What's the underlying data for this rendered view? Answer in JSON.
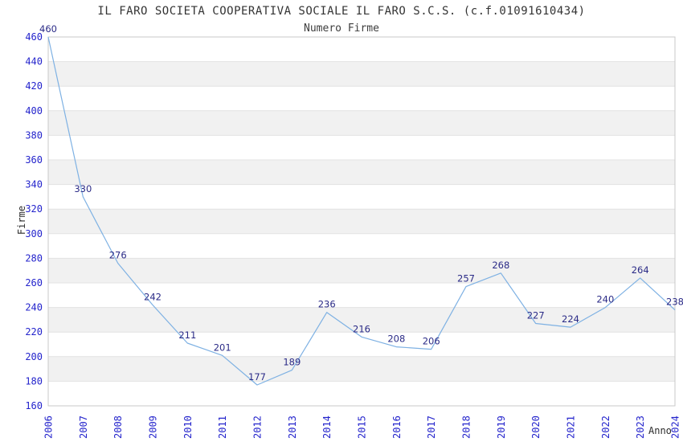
{
  "title": "IL FARO SOCIETA COOPERATIVA SOCIALE IL FARO S.C.S. (c.f.01091610434)",
  "subtitle": "Numero Firme",
  "colors": {
    "background": "#ffffff",
    "title_text": "#333333",
    "accent_line": "#7eb1e3",
    "axis_tick_label": "#2424cc",
    "point_label": "#2b2b87",
    "plot_band": "#f1f1f1",
    "grid_line": "#e2e2e2",
    "plot_border": "#c9c9c9"
  },
  "chart_data": {
    "type": "line",
    "title": "IL FARO SOCIETA COOPERATIVA SOCIALE IL FARO S.C.S. (c.f.01091610434)",
    "subtitle": "Numero Firme",
    "xlabel": "Anno",
    "ylabel": "Firme",
    "x": [
      "2006",
      "2007",
      "2008",
      "2009",
      "2010",
      "2011",
      "2012",
      "2013",
      "2014",
      "2015",
      "2016",
      "2017",
      "2018",
      "2019",
      "2020",
      "2021",
      "2022",
      "2023",
      "2024"
    ],
    "series": [
      {
        "name": "Numero Firme",
        "values": [
          460,
          330,
          276,
          242,
          211,
          201,
          177,
          189,
          236,
          216,
          208,
          206,
          257,
          268,
          227,
          224,
          240,
          264,
          238
        ]
      }
    ],
    "ylim": [
      160,
      460
    ],
    "ytick_step": 20,
    "yticks": [
      160,
      180,
      200,
      220,
      240,
      260,
      280,
      300,
      320,
      340,
      360,
      380,
      400,
      420,
      440,
      460
    ],
    "grid": "horizontal",
    "bands": true,
    "legend": "none",
    "data_labels": true
  }
}
